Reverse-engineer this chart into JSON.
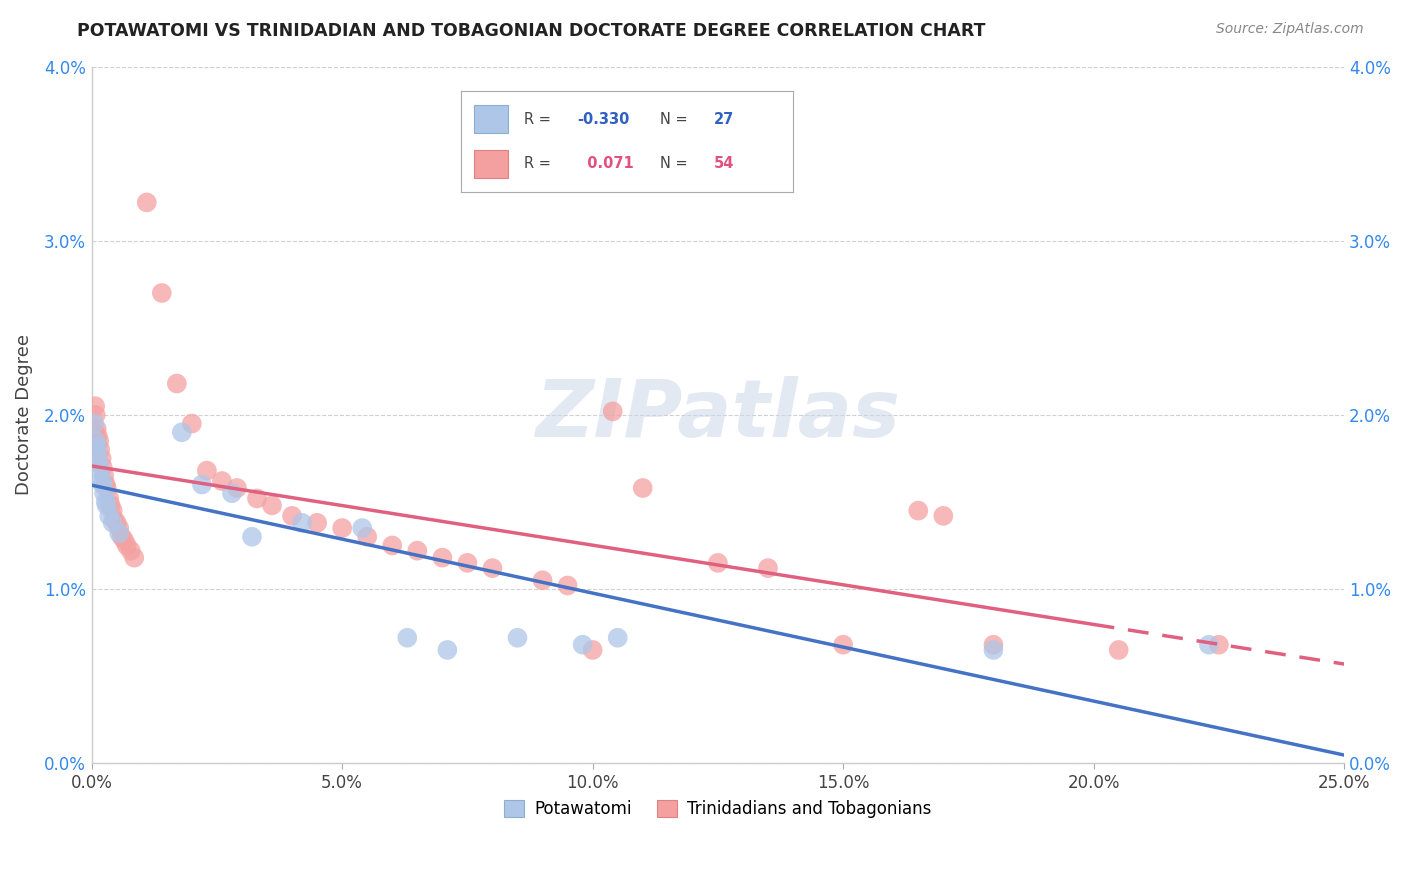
{
  "title": "POTAWATOMI VS TRINIDADIAN AND TOBAGONIAN DOCTORATE DEGREE CORRELATION CHART",
  "source": "Source: ZipAtlas.com",
  "xlabel_values": [
    0.0,
    5.0,
    10.0,
    15.0,
    20.0,
    25.0
  ],
  "ylabel_values": [
    0.0,
    1.0,
    2.0,
    3.0,
    4.0
  ],
  "xlim": [
    0.0,
    25.0
  ],
  "ylim": [
    0.0,
    4.0
  ],
  "legend_blue_r": "-0.330",
  "legend_blue_n": "27",
  "legend_pink_r": "0.071",
  "legend_pink_n": "54",
  "blue_scatter_color": "#aec6e8",
  "pink_scatter_color": "#f4a0a0",
  "blue_line_color": "#4472c4",
  "pink_line_color": "#e06080",
  "background_color": "#ffffff",
  "grid_color": "#d0d0d0",
  "potawatomi_x": [
    0.05,
    0.08,
    0.1,
    0.12,
    0.15,
    0.18,
    0.2,
    0.22,
    0.25,
    0.28,
    0.3,
    0.35,
    0.42,
    0.55,
    1.8,
    2.2,
    2.8,
    3.2,
    4.2,
    5.4,
    6.3,
    7.1,
    8.5,
    9.8,
    10.5,
    18.0,
    22.3
  ],
  "potawatomi_y": [
    1.95,
    1.85,
    1.82,
    1.78,
    1.72,
    1.68,
    1.62,
    1.6,
    1.55,
    1.5,
    1.48,
    1.42,
    1.38,
    1.32,
    1.9,
    1.6,
    1.55,
    1.3,
    1.38,
    1.35,
    0.72,
    0.65,
    0.72,
    0.68,
    0.72,
    0.65,
    0.68
  ],
  "trinidadian_x": [
    0.05,
    0.07,
    0.08,
    0.1,
    0.12,
    0.15,
    0.17,
    0.2,
    0.22,
    0.25,
    0.28,
    0.3,
    0.35,
    0.38,
    0.42,
    0.45,
    0.5,
    0.55,
    0.6,
    0.65,
    0.7,
    0.78,
    0.85,
    1.1,
    1.4,
    1.7,
    2.0,
    2.3,
    2.6,
    2.9,
    3.3,
    3.6,
    4.0,
    4.5,
    5.0,
    5.5,
    6.0,
    6.5,
    7.0,
    7.5,
    8.0,
    9.0,
    9.5,
    10.0,
    10.4,
    11.0,
    12.5,
    13.5,
    15.0,
    16.5,
    17.0,
    18.0,
    20.5,
    22.5
  ],
  "trinidadian_y": [
    1.9,
    2.05,
    2.0,
    1.92,
    1.88,
    1.85,
    1.8,
    1.75,
    1.7,
    1.65,
    1.6,
    1.58,
    1.52,
    1.48,
    1.45,
    1.4,
    1.38,
    1.35,
    1.3,
    1.28,
    1.25,
    1.22,
    1.18,
    3.22,
    2.7,
    2.18,
    1.95,
    1.68,
    1.62,
    1.58,
    1.52,
    1.48,
    1.42,
    1.38,
    1.35,
    1.3,
    1.25,
    1.22,
    1.18,
    1.15,
    1.12,
    1.05,
    1.02,
    0.65,
    2.02,
    1.58,
    1.15,
    1.12,
    0.68,
    1.45,
    1.42,
    0.68,
    0.65,
    0.68
  ]
}
